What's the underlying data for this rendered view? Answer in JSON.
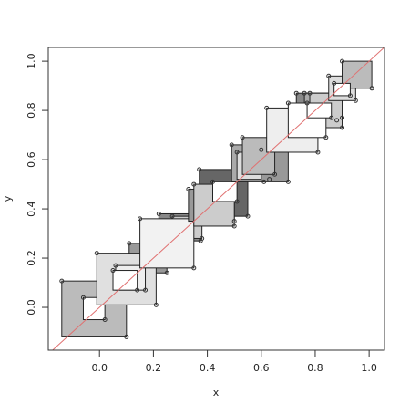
{
  "chart_data": {
    "type": "rects",
    "x_label": "x",
    "y_label": "y",
    "xlim": [
      -0.19,
      1.057
    ],
    "ylim": [
      -0.174,
      1.056
    ],
    "xticks": [
      {
        "value": 0,
        "label": "0.0"
      },
      0.2,
      0.4,
      0.6,
      0.8,
      {
        "value": 1,
        "label": "1.0"
      }
    ],
    "yticks": [
      {
        "value": 0,
        "label": "0.0"
      },
      0.2,
      0.4,
      0.6,
      0.8,
      {
        "value": 1,
        "label": "1.0"
      }
    ],
    "abline": {
      "intercept": 0,
      "slope": 1,
      "color": "#e07070"
    },
    "rects": [
      {
        "x": [
          -0.14,
          0.1
        ],
        "y": [
          -0.12,
          0.107
        ],
        "fill": "#bbbbbb"
      },
      {
        "x": [
          -0.06,
          0.02
        ],
        "y": [
          -0.05,
          0.04
        ],
        "fill": "#ffffff"
      },
      {
        "x": [
          0.11,
          0.25
        ],
        "y": [
          0.14,
          0.26
        ],
        "fill": "#999999"
      },
      {
        "x": [
          -0.01,
          0.21
        ],
        "y": [
          0.01,
          0.22
        ],
        "fill": "#e0e0e0"
      },
      {
        "x": [
          0.06,
          0.17
        ],
        "y": [
          0.07,
          0.17
        ],
        "fill": "#eeeeee"
      },
      {
        "x": [
          0.05,
          0.14
        ],
        "y": [
          0.07,
          0.15
        ],
        "fill": "#ffffff"
      },
      {
        "x": [
          0.22,
          0.375
        ],
        "y": [
          0.27,
          0.38
        ],
        "fill": "#888888"
      },
      {
        "x": [
          0.27,
          0.38
        ],
        "y": [
          0.28,
          0.37
        ],
        "fill": "#cccccc"
      },
      {
        "x": [
          0.15,
          0.35
        ],
        "y": [
          0.16,
          0.36
        ],
        "fill": "#f2f2f2"
      },
      {
        "x": [
          0.37,
          0.55
        ],
        "y": [
          0.37,
          0.56
        ],
        "fill": "#666666"
      },
      {
        "x": [
          0.33,
          0.5
        ],
        "y": [
          0.35,
          0.48
        ],
        "fill": "#999999"
      },
      {
        "x": [
          0.35,
          0.5
        ],
        "y": [
          0.33,
          0.5
        ],
        "fill": "#cccccc"
      },
      {
        "x": [
          0.42,
          0.51
        ],
        "y": [
          0.43,
          0.51
        ],
        "fill": "#ffffff"
      },
      {
        "x": [
          0.49,
          0.61
        ],
        "y": [
          0.51,
          0.66
        ],
        "fill": "#aaaaaa"
      },
      {
        "x": [
          0.51,
          0.63
        ],
        "y": [
          0.52,
          0.63
        ],
        "fill": "#dddddd"
      },
      {
        "x": [
          0.6,
          0.7
        ],
        "y": [
          0.51,
          0.64
        ],
        "fill": "#999999"
      },
      {
        "x": [
          0.53,
          0.65
        ],
        "y": [
          0.54,
          0.69
        ],
        "fill": "#bbbbbb"
      },
      {
        "x": [
          0.62,
          0.81
        ],
        "y": [
          0.63,
          0.81
        ],
        "fill": "#eeeeee"
      },
      {
        "x": [
          0.73,
          0.88
        ],
        "y": [
          0.76,
          0.87
        ],
        "fill": "#888888"
      },
      {
        "x": [
          0.76,
          0.9
        ],
        "y": [
          0.77,
          0.87
        ],
        "fill": "#aaaaaa"
      },
      {
        "x": [
          0.78,
          0.9
        ],
        "y": [
          0.73,
          0.87
        ],
        "fill": "#cccccc"
      },
      {
        "x": [
          0.7,
          0.84
        ],
        "y": [
          0.69,
          0.83
        ],
        "fill": "#ffffff"
      },
      {
        "x": [
          0.77,
          0.86
        ],
        "y": [
          0.77,
          0.83
        ],
        "fill": "#ffffff"
      },
      {
        "x": [
          0.85,
          0.95
        ],
        "y": [
          0.84,
          0.94
        ],
        "fill": "#dddddd"
      },
      {
        "x": [
          0.9,
          1.01
        ],
        "y": [
          0.89,
          1.0
        ],
        "fill": "#bbbbbb"
      },
      {
        "x": [
          0.87,
          0.93
        ],
        "y": [
          0.86,
          0.91
        ],
        "fill": "#ffffff"
      }
    ]
  }
}
